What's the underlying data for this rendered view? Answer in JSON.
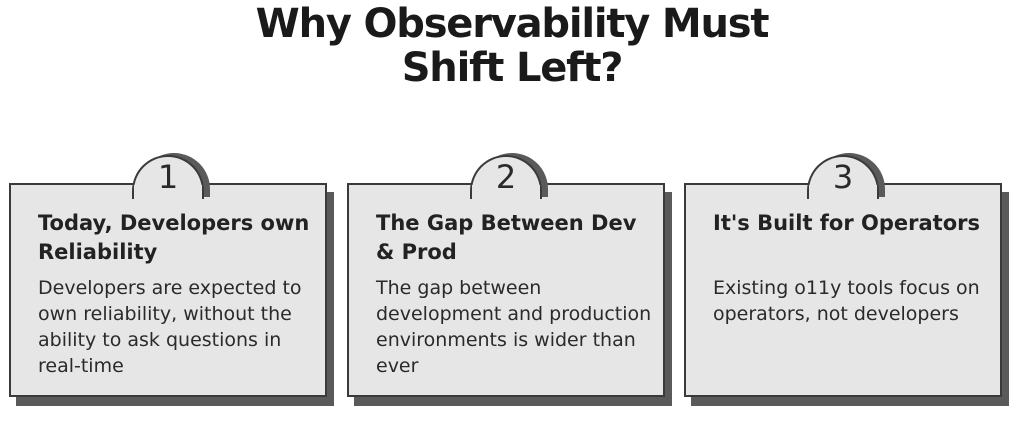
{
  "title": {
    "line1": "Why Observability Must",
    "line2": "Shift Left?"
  },
  "cards": [
    {
      "number": "1",
      "title": "Today, Developers own Reliability",
      "text": "Developers are expected to own reliability, without the ability to ask questions in real-time"
    },
    {
      "number": "2",
      "title": "The Gap Between Dev & Prod",
      "text": "The gap between development and production environments is wider than ever"
    },
    {
      "number": "3",
      "title": "It's Built for Operators",
      "text": "Existing o11y tools focus on operators, not developers"
    }
  ]
}
